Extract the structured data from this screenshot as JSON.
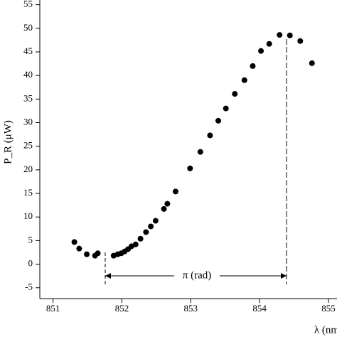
{
  "chart_data": {
    "type": "scatter",
    "xlabel": "λ (nm)",
    "ylabel": "P_R (μW)",
    "annotation": "π (rad)",
    "x": [
      851.31,
      851.38,
      851.49,
      851.61,
      851.65,
      851.88,
      851.94,
      851.99,
      852.04,
      852.09,
      852.14,
      852.2,
      852.27,
      852.35,
      852.42,
      852.49,
      852.61,
      852.66,
      852.78,
      852.99,
      853.14,
      853.28,
      853.4,
      853.51,
      853.64,
      853.78,
      853.9,
      854.02,
      854.14,
      854.29,
      854.44,
      854.59,
      854.76
    ],
    "series": [
      {
        "color": "#000000",
        "values": [
          4.7,
          3.3,
          2.1,
          1.8,
          2.3,
          1.8,
          2.1,
          2.3,
          2.7,
          3.2,
          3.8,
          4.2,
          5.4,
          6.8,
          8.0,
          9.2,
          11.7,
          12.8,
          15.4,
          20.3,
          23.8,
          27.3,
          30.4,
          33.0,
          36.1,
          39.0,
          42.0,
          45.2,
          46.7,
          48.6,
          48.5,
          47.3,
          42.6
        ]
      }
    ],
    "xlim": [
      850.87,
      855
    ],
    "ylim": [
      -7.3,
      56
    ],
    "xticks": [
      851,
      852,
      853,
      854,
      855
    ],
    "yticks": [
      -5,
      0,
      5,
      10,
      15,
      20,
      25,
      30,
      35,
      40,
      45,
      50,
      55
    ]
  }
}
